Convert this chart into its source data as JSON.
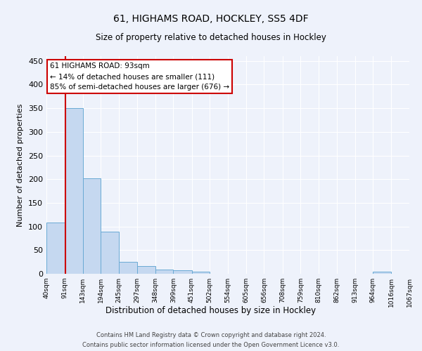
{
  "title1": "61, HIGHAMS ROAD, HOCKLEY, SS5 4DF",
  "title2": "Size of property relative to detached houses in Hockley",
  "xlabel": "Distribution of detached houses by size in Hockley",
  "ylabel": "Number of detached properties",
  "bar_values": [
    108,
    350,
    202,
    89,
    25,
    16,
    9,
    8,
    4,
    0,
    0,
    0,
    0,
    0,
    0,
    0,
    0,
    0,
    4,
    0
  ],
  "bin_labels": [
    "40sqm",
    "91sqm",
    "143sqm",
    "194sqm",
    "245sqm",
    "297sqm",
    "348sqm",
    "399sqm",
    "451sqm",
    "502sqm",
    "554sqm",
    "605sqm",
    "656sqm",
    "708sqm",
    "759sqm",
    "810sqm",
    "862sqm",
    "913sqm",
    "964sqm",
    "1016sqm",
    "1067sqm"
  ],
  "bar_color": "#c5d8f0",
  "bar_edge_color": "#6aaad4",
  "background_color": "#eef2fb",
  "grid_color": "#ffffff",
  "property_line_x": 93,
  "property_line_label": "61 HIGHAMS ROAD: 93sqm",
  "annotation_line1": "← 14% of detached houses are smaller (111)",
  "annotation_line2": "85% of semi-detached houses are larger (676) →",
  "annotation_box_color": "#ffffff",
  "annotation_box_edge": "#cc0000",
  "vline_color": "#cc0000",
  "footer1": "Contains HM Land Registry data © Crown copyright and database right 2024.",
  "footer2": "Contains public sector information licensed under the Open Government Licence v3.0.",
  "ylim": [
    0,
    460
  ],
  "bin_edges": [
    40,
    91,
    143,
    194,
    245,
    297,
    348,
    399,
    451,
    502,
    554,
    605,
    656,
    708,
    759,
    810,
    862,
    913,
    964,
    1016,
    1067
  ]
}
